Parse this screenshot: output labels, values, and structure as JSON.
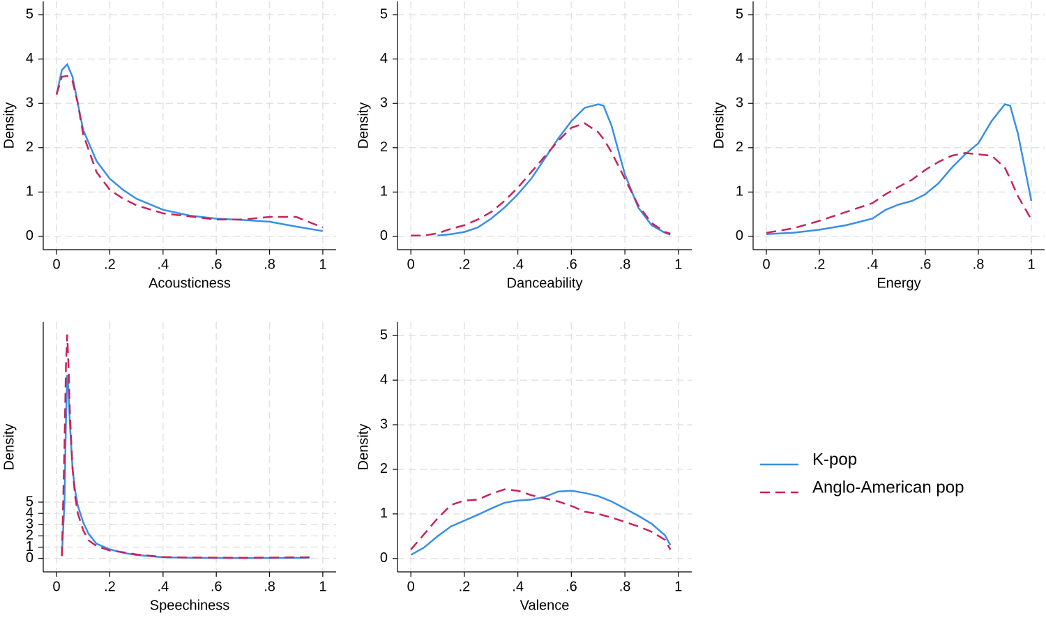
{
  "chart_data": [
    {
      "type": "line",
      "x_label": "Acousticness",
      "y_label": "Density",
      "x": [
        0,
        0.02,
        0.04,
        0.06,
        0.08,
        0.1,
        0.15,
        0.2,
        0.25,
        0.3,
        0.4,
        0.5,
        0.6,
        0.7,
        0.8,
        0.9,
        1
      ],
      "series": [
        {
          "name": "K-pop",
          "color": "#3a8ee6",
          "dashed": false,
          "values": [
            3.2,
            3.75,
            3.88,
            3.6,
            3.0,
            2.4,
            1.7,
            1.3,
            1.05,
            0.85,
            0.6,
            0.47,
            0.4,
            0.37,
            0.33,
            0.22,
            0.12
          ]
        },
        {
          "name": "Anglo-American pop",
          "color": "#c8235a",
          "dashed": true,
          "values": [
            3.2,
            3.6,
            3.62,
            3.5,
            3.0,
            2.3,
            1.45,
            1.05,
            0.85,
            0.7,
            0.52,
            0.45,
            0.38,
            0.38,
            0.44,
            0.44,
            0.2
          ]
        }
      ],
      "xlim": [
        -0.05,
        1.05
      ],
      "ylim": [
        -0.3,
        5.3
      ],
      "xticks": [
        0,
        {
          "value": 0.2,
          "label": ".2"
        },
        {
          "value": 0.4,
          "label": ".4"
        },
        {
          "value": 0.6,
          "label": ".6"
        },
        {
          "value": 0.8,
          "label": ".8"
        },
        1
      ],
      "yticks": [
        0,
        1,
        2,
        3,
        4,
        5
      ],
      "grid": true
    },
    {
      "type": "line",
      "x_label": "Danceability",
      "y_label": "Density",
      "x": [
        0,
        0.05,
        0.1,
        0.15,
        0.2,
        0.25,
        0.3,
        0.35,
        0.4,
        0.45,
        0.5,
        0.55,
        0.6,
        0.65,
        0.7,
        0.72,
        0.75,
        0.8,
        0.85,
        0.9,
        0.95,
        0.97
      ],
      "series": [
        {
          "name": "K-pop",
          "color": "#3a8ee6",
          "dashed": false,
          "values": [
            null,
            null,
            0.02,
            0.05,
            0.1,
            0.2,
            0.4,
            0.65,
            0.95,
            1.3,
            1.75,
            2.2,
            2.6,
            2.9,
            2.98,
            2.95,
            2.5,
            1.4,
            0.65,
            0.25,
            0.08,
            0.04
          ]
        },
        {
          "name": "Anglo-American pop",
          "color": "#c8235a",
          "dashed": true,
          "values": [
            0.02,
            0.02,
            0.07,
            0.17,
            0.25,
            0.38,
            0.55,
            0.8,
            1.1,
            1.45,
            1.8,
            2.15,
            2.45,
            2.55,
            2.35,
            2.2,
            1.9,
            1.3,
            0.7,
            0.3,
            0.1,
            0.06
          ]
        }
      ],
      "xlim": [
        -0.05,
        1.05
      ],
      "ylim": [
        -0.3,
        5.3
      ],
      "xticks": [
        0,
        {
          "value": 0.2,
          "label": ".2"
        },
        {
          "value": 0.4,
          "label": ".4"
        },
        {
          "value": 0.6,
          "label": ".6"
        },
        {
          "value": 0.8,
          "label": ".8"
        },
        1
      ],
      "yticks": [
        0,
        1,
        2,
        3,
        4,
        5
      ],
      "grid": true
    },
    {
      "type": "line",
      "x_label": "Energy",
      "y_label": "Density",
      "x": [
        0,
        0.1,
        0.2,
        0.3,
        0.4,
        0.45,
        0.5,
        0.55,
        0.6,
        0.65,
        0.7,
        0.75,
        0.8,
        0.85,
        0.9,
        0.92,
        0.95,
        1
      ],
      "series": [
        {
          "name": "K-pop",
          "color": "#3a8ee6",
          "dashed": false,
          "values": [
            0.05,
            0.08,
            0.15,
            0.25,
            0.4,
            0.6,
            0.72,
            0.8,
            0.95,
            1.2,
            1.55,
            1.85,
            2.1,
            2.6,
            2.98,
            2.95,
            2.3,
            0.8
          ]
        },
        {
          "name": "Anglo-American pop",
          "color": "#c8235a",
          "dashed": true,
          "values": [
            0.08,
            0.18,
            0.35,
            0.55,
            0.75,
            0.95,
            1.12,
            1.28,
            1.5,
            1.68,
            1.82,
            1.88,
            1.85,
            1.82,
            1.55,
            1.3,
            0.9,
            0.38
          ]
        }
      ],
      "xlim": [
        -0.05,
        1.05
      ],
      "ylim": [
        -0.3,
        5.3
      ],
      "xticks": [
        0,
        {
          "value": 0.2,
          "label": ".2"
        },
        {
          "value": 0.4,
          "label": ".4"
        },
        {
          "value": 0.6,
          "label": ".6"
        },
        {
          "value": 0.8,
          "label": ".8"
        },
        1
      ],
      "yticks": [
        0,
        1,
        2,
        3,
        4,
        5
      ],
      "grid": true
    },
    {
      "type": "line",
      "x_label": "Speechiness",
      "y_label": "Density",
      "x": [
        0.02,
        0.03,
        0.035,
        0.04,
        0.045,
        0.05,
        0.06,
        0.07,
        0.08,
        0.1,
        0.12,
        0.15,
        0.2,
        0.25,
        0.3,
        0.4,
        0.5,
        0.7,
        0.95
      ],
      "series": [
        {
          "name": "K-pop",
          "color": "#3a8ee6",
          "dashed": false,
          "values": [
            0.2,
            5,
            12,
            16.3,
            15,
            12,
            8,
            6,
            4.7,
            3.2,
            2.2,
            1.3,
            0.8,
            0.5,
            0.3,
            0.1,
            0.05,
            0.03,
            0.05
          ]
        },
        {
          "name": "Anglo-American pop",
          "color": "#c8235a",
          "dashed": true,
          "values": [
            0.2,
            10,
            17,
            19.9,
            17,
            13,
            8,
            5.5,
            4,
            2.5,
            1.6,
            1.1,
            0.7,
            0.55,
            0.35,
            0.12,
            0.08,
            0.05,
            0.1
          ]
        }
      ],
      "xlim": [
        -0.05,
        1.05
      ],
      "ylim": [
        -1.2,
        21
      ],
      "xticks": [
        0,
        {
          "value": 0.2,
          "label": ".2"
        },
        {
          "value": 0.4,
          "label": ".4"
        },
        {
          "value": 0.6,
          "label": ".6"
        },
        {
          "value": 0.8,
          "label": ".8"
        },
        1
      ],
      "yticks": [
        0,
        1,
        2,
        3,
        4,
        5
      ],
      "grid": true
    },
    {
      "type": "line",
      "x_label": "Valence",
      "y_label": "Density",
      "x": [
        0,
        0.05,
        0.1,
        0.15,
        0.2,
        0.25,
        0.3,
        0.35,
        0.4,
        0.45,
        0.5,
        0.55,
        0.6,
        0.65,
        0.7,
        0.75,
        0.8,
        0.85,
        0.9,
        0.95,
        0.97
      ],
      "series": [
        {
          "name": "K-pop",
          "color": "#3a8ee6",
          "dashed": false,
          "values": [
            0.08,
            0.25,
            0.5,
            0.72,
            0.85,
            0.98,
            1.12,
            1.25,
            1.3,
            1.32,
            1.38,
            1.5,
            1.52,
            1.47,
            1.4,
            1.28,
            1.12,
            0.96,
            0.78,
            0.52,
            0.3
          ]
        },
        {
          "name": "Anglo-American pop",
          "color": "#c8235a",
          "dashed": true,
          "values": [
            0.2,
            0.55,
            0.9,
            1.2,
            1.3,
            1.32,
            1.45,
            1.55,
            1.52,
            1.42,
            1.35,
            1.28,
            1.18,
            1.05,
            1.0,
            0.92,
            0.82,
            0.72,
            0.6,
            0.42,
            0.2
          ]
        }
      ],
      "xlim": [
        -0.05,
        1.05
      ],
      "ylim": [
        -0.3,
        5.3
      ],
      "xticks": [
        0,
        {
          "value": 0.2,
          "label": ".2"
        },
        {
          "value": 0.4,
          "label": ".4"
        },
        {
          "value": 0.6,
          "label": ".6"
        },
        {
          "value": 0.8,
          "label": ".8"
        },
        1
      ],
      "yticks": [
        0,
        1,
        2,
        3,
        4,
        5
      ],
      "grid": true
    }
  ]
}
